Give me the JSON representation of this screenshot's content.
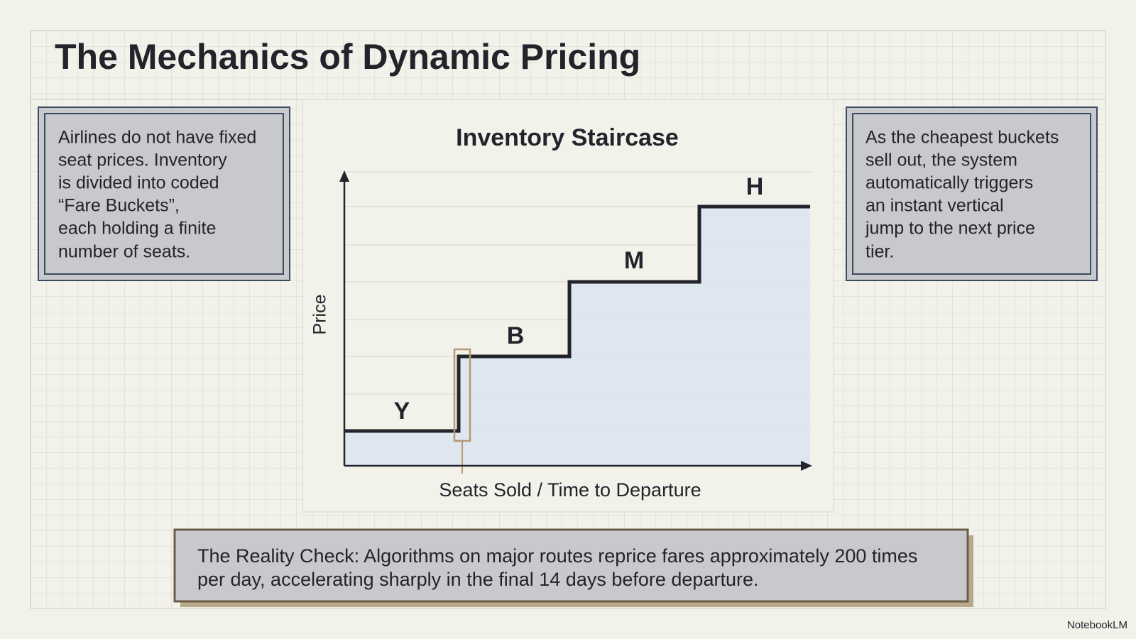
{
  "header": {
    "title": "The Mechanics of Dynamic Pricing"
  },
  "left_note": {
    "lines": [
      "Airlines do not have fixed",
      "seat prices. Inventory",
      "is divided into coded",
      "“Fare Buckets”,",
      "each holding a finite",
      "number of seats."
    ]
  },
  "diagram": {
    "title": "Inventory Staircase",
    "y_label": "Price",
    "x_label": "Seats Sold / Time to Departure",
    "steps": [
      "Y",
      "B",
      "M",
      "H"
    ]
  },
  "right_note": {
    "lines": [
      "As the cheapest buckets",
      "sell out, the system",
      "automatically triggers",
      "an instant vertical",
      "jump to the next price",
      "tier."
    ]
  },
  "footer": {
    "lines": [
      "The Reality Check: Algorithms on major routes reprice fares approximately 200 times",
      "per day, accelerating sharply in the final 14 days before departure."
    ]
  },
  "brand": "NotebookLM"
}
